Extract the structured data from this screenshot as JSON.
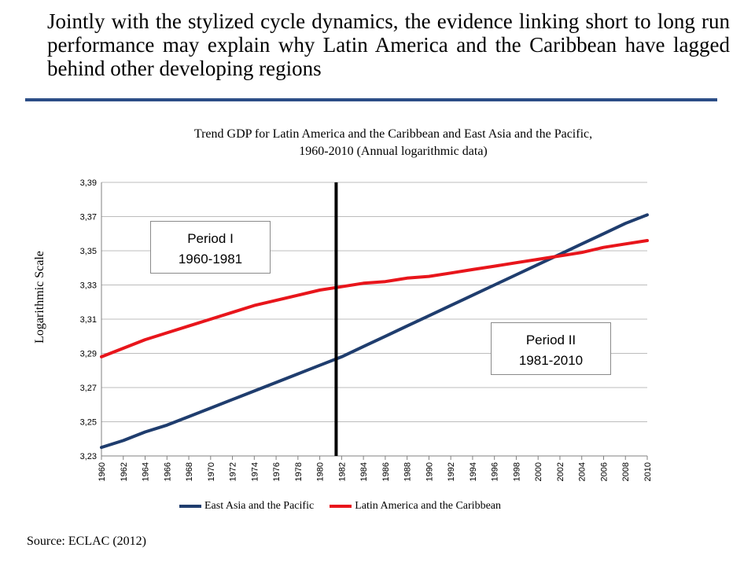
{
  "slide": {
    "title": "Jointly with the stylized cycle dynamics, the evidence linking short to long run performance may explain why Latin America and the Caribbean have lagged behind other developing regions",
    "source": "Source: ECLAC (2012)"
  },
  "colors": {
    "rule": "#2b4d86",
    "east_asia": "#1f3d6e",
    "latin_america": "#e8151b",
    "divider": "#000000"
  },
  "chart_data": {
    "type": "line",
    "title_line1": "Trend GDP for Latin America and the Caribbean and East Asia and the Pacific,",
    "title_line2": "1960-2010  (Annual logarithmic data)",
    "ylabel": "Logarithmic Scale",
    "xlabel": "",
    "ylim": [
      3.23,
      3.39
    ],
    "yticks": [
      "3,23",
      "3,25",
      "3,27",
      "3,29",
      "3,31",
      "3,33",
      "3,35",
      "3,37",
      "3,39"
    ],
    "xlim": [
      1960,
      2010
    ],
    "xticks": [
      "1960",
      "1962",
      "1964",
      "1966",
      "1968",
      "1970",
      "1972",
      "1974",
      "1976",
      "1978",
      "1980",
      "1982",
      "1984",
      "1986",
      "1988",
      "1990",
      "1992",
      "1994",
      "1996",
      "1998",
      "2000",
      "2002",
      "2004",
      "2006",
      "2008",
      "2010"
    ],
    "grid": "horizontal",
    "legend_position": "bottom",
    "divider_year": 1981.5,
    "series": [
      {
        "name": "East Asia and the Pacific",
        "color": "#1f3d6e",
        "x": [
          1960,
          1962,
          1964,
          1966,
          1968,
          1970,
          1972,
          1974,
          1976,
          1978,
          1980,
          1982,
          1984,
          1986,
          1988,
          1990,
          1992,
          1994,
          1996,
          1998,
          2000,
          2002,
          2004,
          2006,
          2008,
          2010
        ],
        "values": [
          3.235,
          3.239,
          3.244,
          3.248,
          3.253,
          3.258,
          3.263,
          3.268,
          3.273,
          3.278,
          3.283,
          3.288,
          3.294,
          3.3,
          3.306,
          3.312,
          3.318,
          3.324,
          3.33,
          3.336,
          3.342,
          3.348,
          3.354,
          3.36,
          3.366,
          3.371
        ]
      },
      {
        "name": "Latin America and the Caribbean",
        "color": "#e8151b",
        "x": [
          1960,
          1962,
          1964,
          1966,
          1968,
          1970,
          1972,
          1974,
          1976,
          1978,
          1980,
          1982,
          1984,
          1986,
          1988,
          1990,
          1992,
          1994,
          1996,
          1998,
          2000,
          2002,
          2004,
          2006,
          2008,
          2010
        ],
        "values": [
          3.288,
          3.293,
          3.298,
          3.302,
          3.306,
          3.31,
          3.314,
          3.318,
          3.321,
          3.324,
          3.327,
          3.329,
          3.331,
          3.332,
          3.334,
          3.335,
          3.337,
          3.339,
          3.341,
          3.343,
          3.345,
          3.347,
          3.349,
          3.352,
          3.354,
          3.356
        ]
      }
    ],
    "annotations": [
      {
        "id": "period-1",
        "line1": "Period I",
        "line2": "1960-1981"
      },
      {
        "id": "period-2",
        "line1": "Period II",
        "line2": "1981-2010"
      }
    ]
  }
}
